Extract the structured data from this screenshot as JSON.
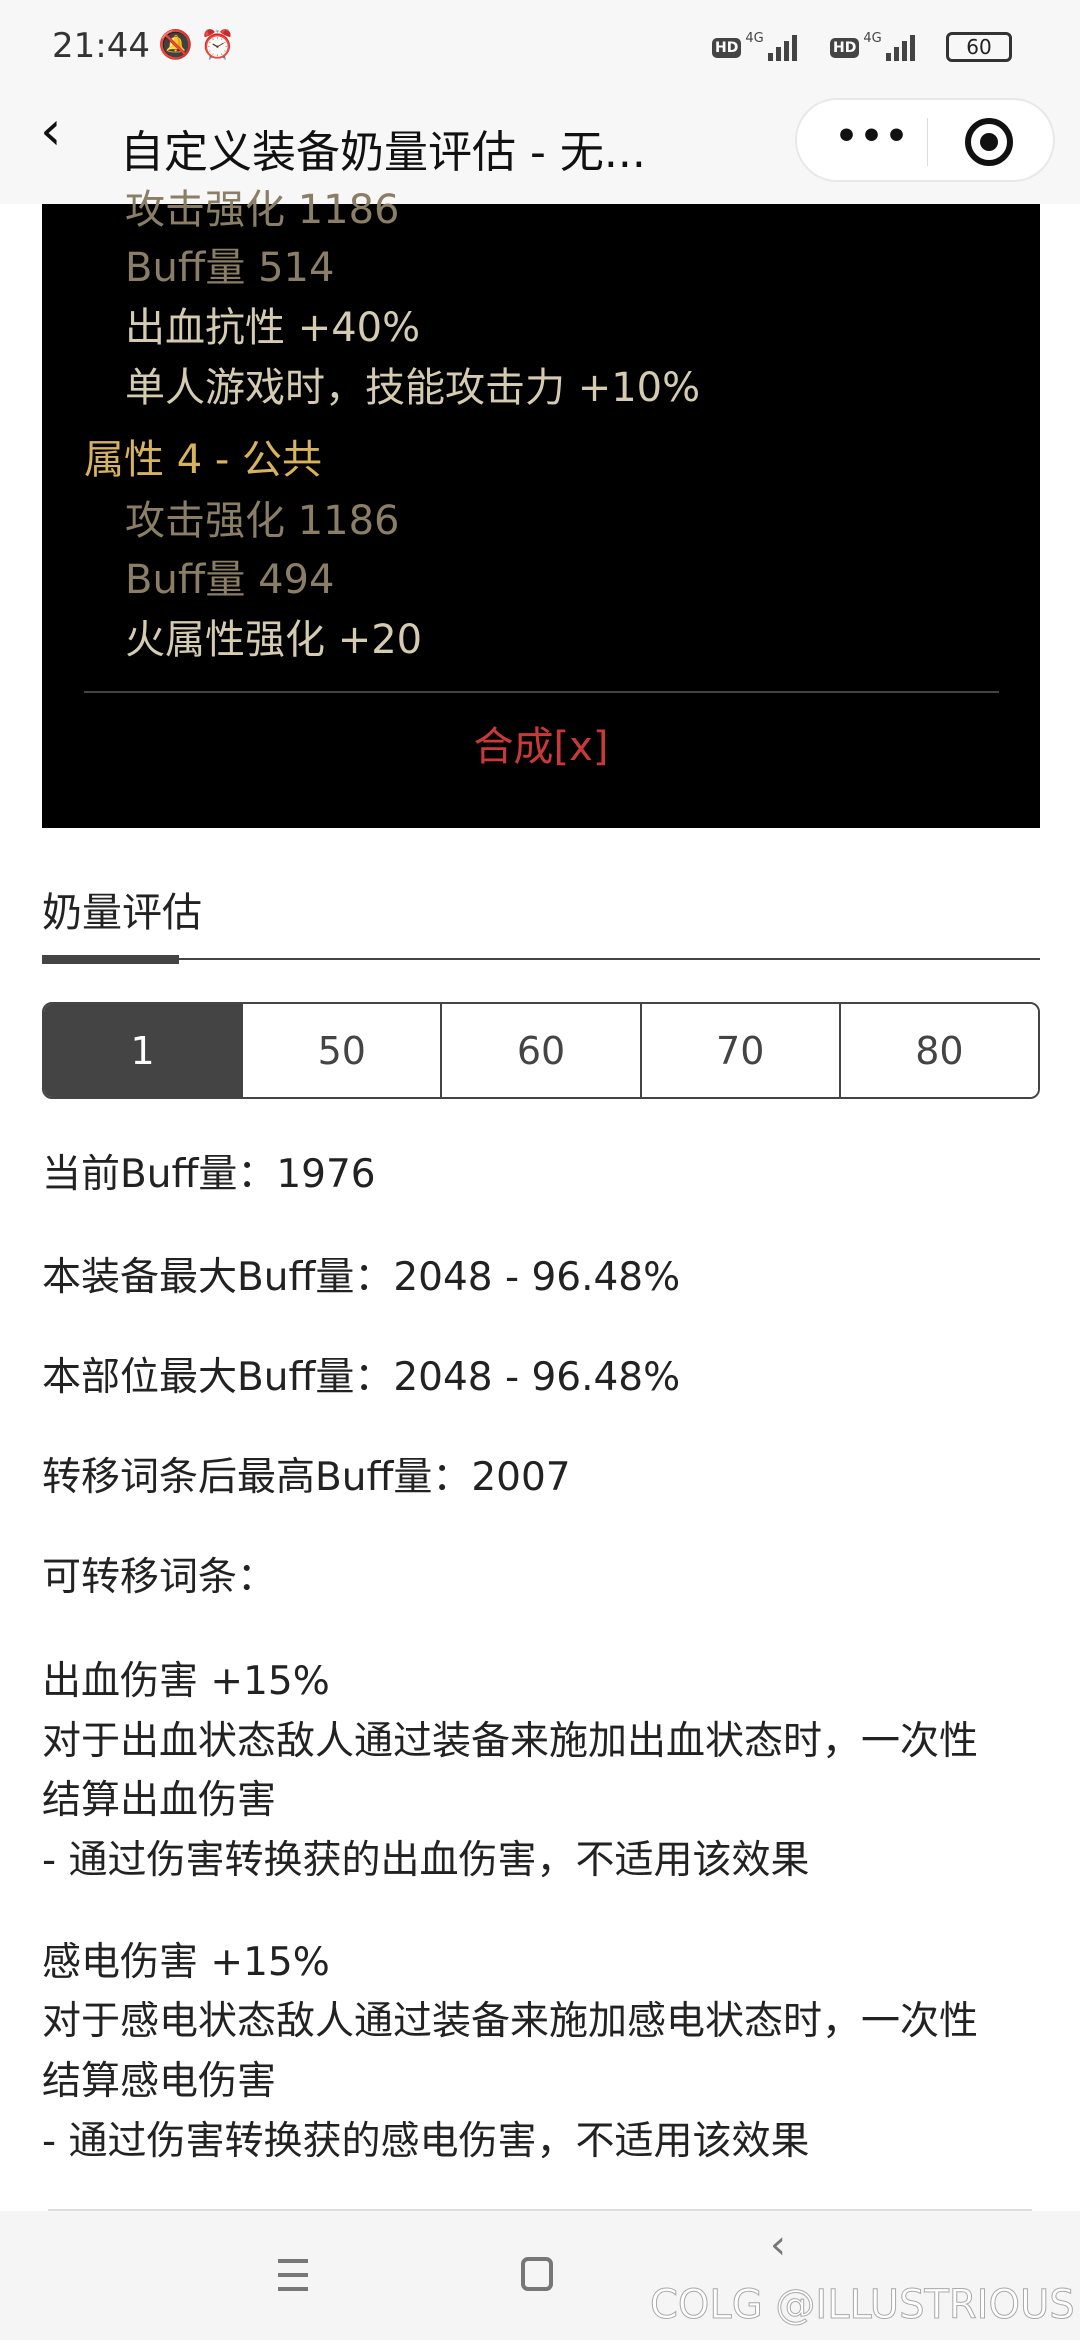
{
  "status": {
    "time": "21:44",
    "battery": "60",
    "network": "4G"
  },
  "header": {
    "title": "自定义装备奶量评估 - 无...",
    "back": "‹"
  },
  "panel": {
    "lines": [
      {
        "text": "攻击强化  1186",
        "kind": "stat"
      },
      {
        "text": "Buff量  514",
        "kind": "stat"
      },
      {
        "text": "出血抗性 +40%",
        "kind": "eff"
      },
      {
        "text": "单人游戏时，技能攻击力 +10%",
        "kind": "eff"
      },
      {
        "text": "属性 4 - 公共",
        "kind": "head"
      },
      {
        "text": "攻击强化  1186",
        "kind": "stat"
      },
      {
        "text": "Buff量  494",
        "kind": "stat"
      },
      {
        "text": "火属性强化 +20",
        "kind": "eff"
      }
    ],
    "craft": "合成[x]"
  },
  "section": {
    "title": "奶量评估"
  },
  "levels": {
    "options": [
      "1",
      "50",
      "60",
      "70",
      "80"
    ],
    "selected": "1"
  },
  "info": {
    "current": "当前Buff量：1976",
    "equip_max": "本装备最大Buff量：2048 - 96.48%",
    "slot_max": "本部位最大Buff量：2048 - 96.48%",
    "transfer_max": "转移词条后最高Buff量：2007",
    "transferable": "可转移词条：",
    "entries": [
      [
        "出血伤害 +15%",
        "对于出血状态敌人通过装备来施加出血状态时，一次性",
        "结算出血伤害",
        "- 通过伤害转换获的出血伤害，不适用该效果"
      ],
      [
        "感电伤害 +15%",
        "对于感电状态敌人通过装备来施加感电状态时，一次性",
        "结算感电伤害",
        "- 通过伤害转换获的感电伤害，不适用该效果"
      ]
    ]
  },
  "watermark": "COLG @ILLUSTRIOUS",
  "colors": {
    "stat": "#8a7f66",
    "effect": "#d4cbb0",
    "heading": "#d8b35e",
    "craft": "#c9393a",
    "active_tab": "#444444"
  }
}
